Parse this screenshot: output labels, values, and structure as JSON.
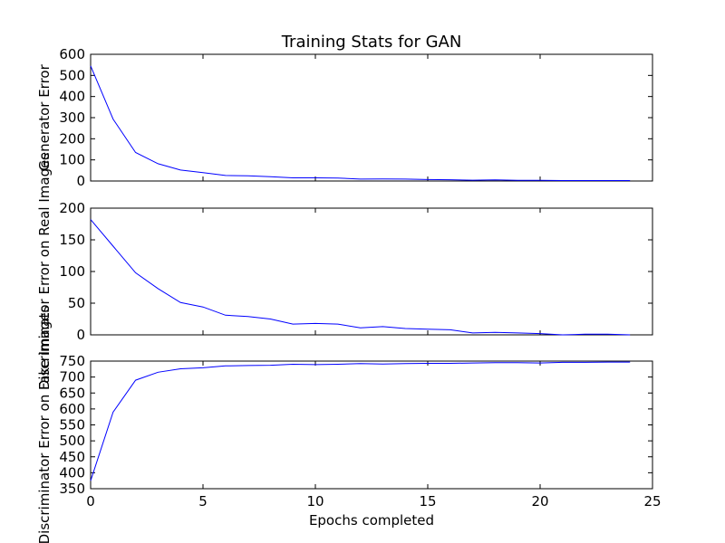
{
  "chart_data": {
    "type": "line",
    "title": "Training Stats for GAN",
    "xlabel": "Epochs completed",
    "xlim": [
      0,
      25
    ],
    "xticks": [
      0,
      5,
      10,
      15,
      20,
      25
    ],
    "line_color": "#0000ff",
    "grid": false,
    "x": [
      0,
      1,
      2,
      3,
      4,
      5,
      6,
      7,
      8,
      9,
      10,
      11,
      12,
      13,
      14,
      15,
      16,
      17,
      18,
      19,
      20,
      21,
      22,
      23,
      24
    ],
    "panels": [
      {
        "ylabel": "Generator Error",
        "ylim": [
          0,
          600
        ],
        "yticks": [
          0,
          100,
          200,
          300,
          400,
          500,
          600
        ],
        "values": [
          545,
          293,
          135,
          82,
          52,
          40,
          26,
          25,
          20,
          15,
          15,
          14,
          9,
          10,
          9,
          7,
          6,
          4,
          5,
          3,
          3,
          2,
          2,
          2,
          2
        ]
      },
      {
        "ylabel": "Discriminator Error on Real Images",
        "ylim": [
          0,
          200
        ],
        "yticks": [
          0,
          50,
          100,
          150,
          200
        ],
        "values": [
          182,
          140,
          98,
          73,
          51,
          44,
          31,
          29,
          25,
          17,
          18,
          17,
          11,
          13,
          10,
          9,
          8,
          3,
          4,
          3,
          2,
          0,
          1,
          1,
          0
        ]
      },
      {
        "ylabel": "Discriminator Error on Fake Images",
        "ylim": [
          350,
          750
        ],
        "yticks": [
          350,
          400,
          450,
          500,
          550,
          600,
          650,
          700,
          750
        ],
        "values": [
          375,
          590,
          690,
          715,
          726,
          729,
          735,
          736,
          737,
          740,
          739,
          740,
          742,
          741,
          742,
          743,
          743,
          744,
          745,
          745,
          744,
          746,
          746,
          747,
          747
        ]
      }
    ]
  }
}
